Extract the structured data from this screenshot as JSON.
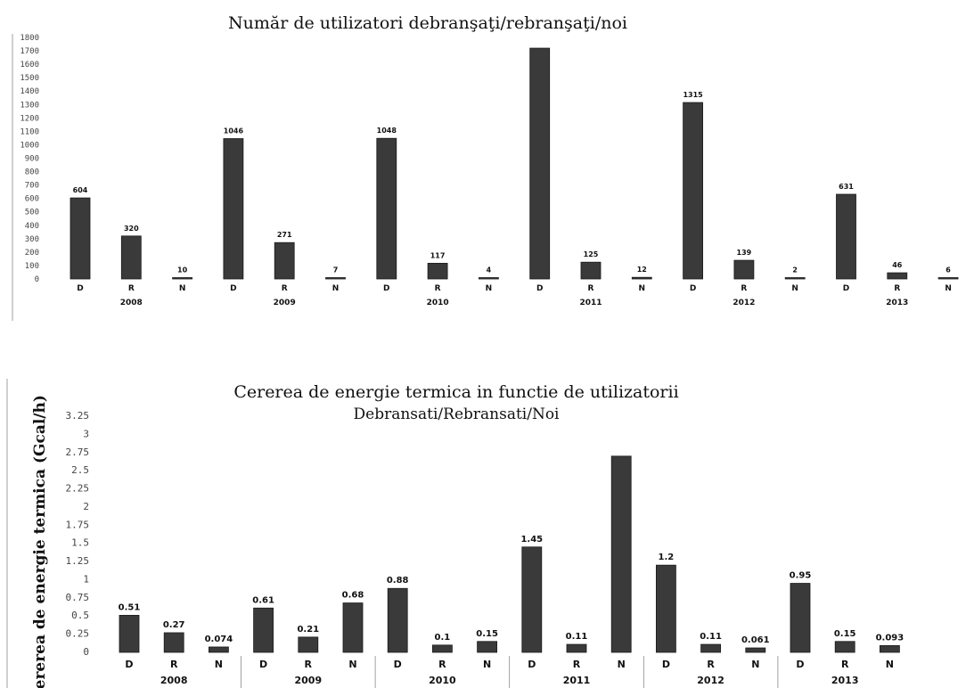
{
  "chart_data": [
    {
      "type": "bar",
      "title": "Număr de utilizatori debranşaţi/rebranşaţi/noi",
      "groups": [
        "2008",
        "2009",
        "2010",
        "2011",
        "2012",
        "2013"
      ],
      "categories": [
        "D",
        "R",
        "N",
        "D",
        "R",
        "N",
        "D",
        "R",
        "N",
        "D",
        "R",
        "N",
        "D",
        "R",
        "N",
        "D",
        "R",
        "N"
      ],
      "values": [
        604,
        320,
        10,
        1046,
        271,
        7,
        1048,
        117,
        4,
        1720,
        125,
        12,
        1315,
        139,
        2,
        631,
        46,
        6
      ],
      "data_labels": [
        "604",
        "320",
        "10",
        "1046",
        "271",
        "7",
        "1048",
        "117",
        "4",
        "",
        "125",
        "12",
        "1315",
        "139",
        "2",
        "631",
        "46",
        "6"
      ],
      "yticks": [
        "0",
        "100",
        "200",
        "300",
        "400",
        "500",
        "600",
        "700",
        "800",
        "900",
        "1000",
        "1100",
        "1200",
        "1300",
        "1400",
        "1500",
        "1600",
        "1700",
        "1800"
      ],
      "ylim": [
        0,
        1800
      ],
      "grid": false,
      "legend": "none"
    },
    {
      "type": "bar",
      "title": "Cererea de energie termica in functie de utilizatorii",
      "subtitle": "Debransati/Rebransati/Noi",
      "ylabel": "Cererea de energie termica (Gcal/h)",
      "groups": [
        "2008",
        "2009",
        "2010",
        "2011",
        "2012",
        "2013"
      ],
      "categories": [
        "D",
        "R",
        "N",
        "D",
        "R",
        "N",
        "D",
        "R",
        "N",
        "D",
        "R",
        "N",
        "D",
        "R",
        "N",
        "D",
        "R",
        "N"
      ],
      "values": [
        0.51,
        0.27,
        0.074,
        0.61,
        0.21,
        0.68,
        0.88,
        0.1,
        0.15,
        1.45,
        0.11,
        2.7,
        1.2,
        0.11,
        0.061,
        0.95,
        0.15,
        0.093
      ],
      "data_labels": [
        "0.51",
        "0.27",
        "0.074",
        "0.61",
        "0.21",
        "0.68",
        "0.88",
        "0.1",
        "0.15",
        "1.45",
        "0.11",
        "",
        "1.2",
        "0.11",
        "0.061",
        "0.95",
        "0.15",
        "0.093"
      ],
      "yticks": [
        "0",
        "0.25",
        "0.5",
        "0.75",
        "1",
        "1.25",
        "1.5",
        "1.75",
        "2",
        "2.25",
        "2.5",
        "2.75",
        "3",
        "3.25"
      ],
      "ylim": [
        0,
        3.25
      ],
      "grid": false,
      "legend": "none"
    }
  ]
}
